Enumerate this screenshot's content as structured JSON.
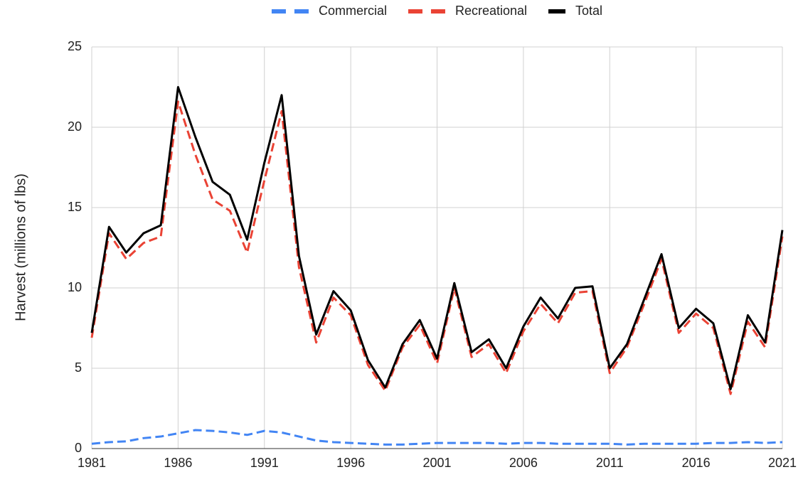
{
  "chart_data": {
    "type": "line",
    "y_label": "Harvest (millions of lbs)",
    "x": [
      1981,
      1982,
      1983,
      1984,
      1985,
      1986,
      1987,
      1988,
      1989,
      1990,
      1991,
      1992,
      1993,
      1994,
      1995,
      1996,
      1997,
      1998,
      1999,
      2000,
      2001,
      2002,
      2003,
      2004,
      2005,
      2006,
      2007,
      2008,
      2009,
      2010,
      2011,
      2012,
      2013,
      2014,
      2015,
      2016,
      2017,
      2018,
      2019,
      2020,
      2021
    ],
    "series": [
      {
        "name": "Commercial",
        "color": "#4285f4",
        "dashed": true,
        "values": [
          0.3,
          0.4,
          0.45,
          0.65,
          0.75,
          0.95,
          1.15,
          1.1,
          1.0,
          0.85,
          1.1,
          1.0,
          0.75,
          0.5,
          0.4,
          0.35,
          0.3,
          0.25,
          0.25,
          0.3,
          0.35,
          0.35,
          0.35,
          0.35,
          0.3,
          0.35,
          0.35,
          0.3,
          0.3,
          0.3,
          0.3,
          0.25,
          0.3,
          0.3,
          0.3,
          0.3,
          0.35,
          0.35,
          0.4,
          0.35,
          0.4
        ]
      },
      {
        "name": "Recreational",
        "color": "#ea4335",
        "dashed": true,
        "values": [
          6.9,
          13.4,
          11.8,
          12.8,
          13.2,
          21.6,
          18.3,
          15.5,
          14.8,
          12.2,
          16.7,
          21.0,
          11.3,
          6.6,
          9.4,
          8.3,
          5.2,
          3.6,
          6.3,
          7.7,
          5.3,
          10.0,
          5.7,
          6.5,
          4.7,
          7.3,
          9.0,
          7.8,
          9.7,
          9.8,
          4.7,
          6.3,
          9.0,
          11.8,
          7.2,
          8.4,
          7.5,
          3.4,
          7.9,
          6.3,
          13.2
        ]
      },
      {
        "name": "Total",
        "color": "#000000",
        "dashed": false,
        "values": [
          7.2,
          13.8,
          12.2,
          13.4,
          13.9,
          22.5,
          19.4,
          16.6,
          15.8,
          13.0,
          17.8,
          22.0,
          12.0,
          7.1,
          9.8,
          8.6,
          5.5,
          3.8,
          6.5,
          8.0,
          5.6,
          10.3,
          6.0,
          6.8,
          5.0,
          7.6,
          9.4,
          8.1,
          10.0,
          10.1,
          5.0,
          6.5,
          9.3,
          12.1,
          7.5,
          8.7,
          7.8,
          3.7,
          8.3,
          6.6,
          13.6
        ]
      }
    ],
    "xlim": [
      1981,
      2021
    ],
    "xticks": [
      1981,
      1986,
      1991,
      1996,
      2001,
      2006,
      2011,
      2016,
      2021
    ],
    "ylim": [
      0,
      25
    ],
    "yticks": [
      0,
      5,
      10,
      15,
      20,
      25
    ],
    "grid": true,
    "legend": "top"
  }
}
